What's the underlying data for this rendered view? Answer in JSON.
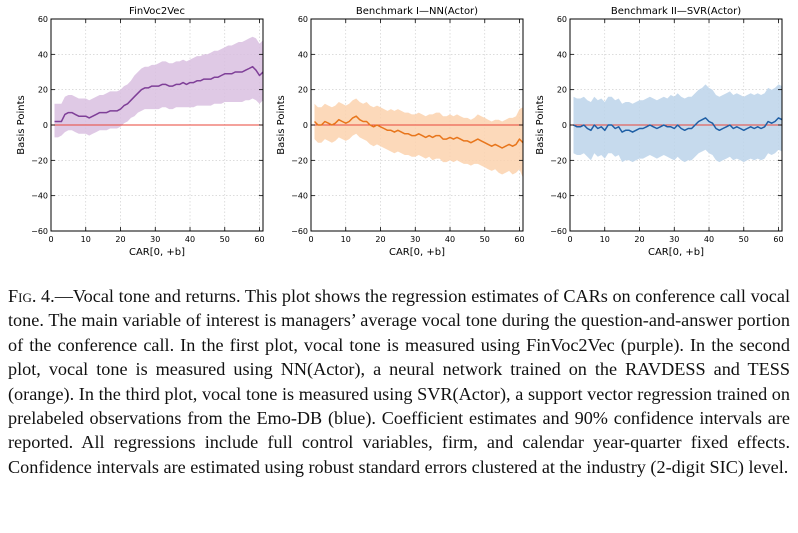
{
  "chart_data": [
    {
      "type": "line",
      "title": "FinVoc2Vec",
      "xlabel": "CAR[0, +b]",
      "ylabel": "Basis Points",
      "xlim": [
        0,
        61
      ],
      "ylim": [
        -60,
        60
      ],
      "xticks": [
        "0",
        "10",
        "20",
        "30",
        "40",
        "50",
        "60"
      ],
      "yticks": [
        "60",
        "40",
        "20",
        "0",
        "−20",
        "−40",
        "−60"
      ],
      "grid": true,
      "colors": {
        "line": "#7f3f98",
        "band": "#d9bfe0",
        "zero": "#e8463a"
      },
      "x": [
        1,
        2,
        3,
        4,
        5,
        6,
        7,
        8,
        9,
        10,
        11,
        12,
        13,
        14,
        15,
        16,
        17,
        18,
        19,
        20,
        21,
        22,
        23,
        24,
        25,
        26,
        27,
        28,
        29,
        30,
        31,
        32,
        33,
        34,
        35,
        36,
        37,
        38,
        39,
        40,
        41,
        42,
        43,
        44,
        45,
        46,
        47,
        48,
        49,
        50,
        51,
        52,
        53,
        54,
        55,
        56,
        57,
        58,
        59,
        60,
        61
      ],
      "series": [
        {
          "values": [
            2,
            2,
            2,
            6,
            7,
            7,
            6,
            5,
            5,
            5,
            4,
            5,
            6,
            7,
            7,
            7,
            8,
            8,
            8,
            9,
            11,
            12,
            14,
            16,
            18,
            20,
            21,
            21,
            22,
            22,
            22,
            23,
            23,
            22,
            22,
            23,
            23,
            24,
            23,
            24,
            24,
            25,
            25,
            26,
            26,
            26,
            27,
            27,
            28,
            29,
            29,
            29,
            30,
            30,
            30,
            31,
            32,
            33,
            31,
            28,
            30
          ],
          "lower": [
            -7,
            -7,
            -6,
            -4,
            -3,
            -3,
            -4,
            -5,
            -5,
            -5,
            -6,
            -5,
            -4,
            -3,
            -3,
            -3,
            -2,
            -2,
            -2,
            -1,
            1,
            2,
            4,
            5,
            7,
            8,
            9,
            9,
            9,
            9,
            9,
            10,
            10,
            9,
            9,
            10,
            10,
            10,
            10,
            10,
            10,
            11,
            11,
            11,
            11,
            11,
            12,
            12,
            12,
            13,
            13,
            13,
            13,
            13,
            13,
            14,
            14,
            15,
            14,
            12,
            14
          ],
          "upper": [
            12,
            12,
            12,
            16,
            17,
            17,
            16,
            15,
            15,
            15,
            14,
            15,
            16,
            17,
            17,
            18,
            19,
            19,
            19,
            20,
            22,
            23,
            25,
            28,
            30,
            32,
            33,
            33,
            34,
            34,
            35,
            36,
            36,
            35,
            35,
            36,
            36,
            37,
            36,
            37,
            38,
            39,
            39,
            40,
            40,
            41,
            42,
            42,
            43,
            44,
            45,
            45,
            46,
            47,
            47,
            48,
            49,
            50,
            49,
            46,
            48
          ]
        }
      ]
    },
    {
      "type": "line",
      "title": "Benchmark I—NN(Actor)",
      "xlabel": "CAR[0, +b]",
      "ylabel": "Basis Points",
      "xlim": [
        0,
        61
      ],
      "ylim": [
        -60,
        60
      ],
      "xticks": [
        "0",
        "10",
        "20",
        "30",
        "40",
        "50",
        "60"
      ],
      "yticks": [
        "60",
        "40",
        "20",
        "0",
        "−20",
        "−40",
        "−60"
      ],
      "grid": true,
      "colors": {
        "line": "#e8761c",
        "band": "#fcd2ae",
        "zero": "#e8463a"
      },
      "x": [
        1,
        2,
        3,
        4,
        5,
        6,
        7,
        8,
        9,
        10,
        11,
        12,
        13,
        14,
        15,
        16,
        17,
        18,
        19,
        20,
        21,
        22,
        23,
        24,
        25,
        26,
        27,
        28,
        29,
        30,
        31,
        32,
        33,
        34,
        35,
        36,
        37,
        38,
        39,
        40,
        41,
        42,
        43,
        44,
        45,
        46,
        47,
        48,
        49,
        50,
        51,
        52,
        53,
        54,
        55,
        56,
        57,
        58,
        59,
        60,
        61
      ],
      "series": [
        {
          "values": [
            2,
            0,
            0,
            2,
            1,
            0,
            1,
            3,
            2,
            1,
            2,
            4,
            5,
            3,
            2,
            2,
            0,
            -1,
            0,
            -1,
            -2,
            -3,
            -3,
            -4,
            -3,
            -4,
            -5,
            -5,
            -6,
            -6,
            -5,
            -6,
            -7,
            -6,
            -7,
            -6,
            -6,
            -8,
            -8,
            -7,
            -8,
            -7,
            -8,
            -9,
            -9,
            -10,
            -9,
            -8,
            -9,
            -10,
            -11,
            -12,
            -11,
            -12,
            -13,
            -12,
            -11,
            -12,
            -11,
            -8,
            -10
          ],
          "lower": [
            -8,
            -10,
            -10,
            -8,
            -9,
            -10,
            -9,
            -7,
            -8,
            -9,
            -8,
            -6,
            -5,
            -7,
            -8,
            -9,
            -11,
            -12,
            -11,
            -12,
            -13,
            -14,
            -15,
            -16,
            -15,
            -16,
            -17,
            -17,
            -18,
            -18,
            -17,
            -18,
            -19,
            -18,
            -20,
            -19,
            -19,
            -21,
            -21,
            -20,
            -21,
            -20,
            -21,
            -22,
            -22,
            -23,
            -22,
            -22,
            -23,
            -24,
            -25,
            -26,
            -25,
            -27,
            -28,
            -27,
            -26,
            -28,
            -27,
            -25,
            -30
          ],
          "upper": [
            12,
            10,
            10,
            12,
            11,
            10,
            11,
            13,
            12,
            11,
            12,
            14,
            15,
            13,
            12,
            13,
            11,
            10,
            11,
            10,
            9,
            8,
            9,
            8,
            9,
            8,
            7,
            7,
            6,
            6,
            7,
            6,
            5,
            6,
            6,
            7,
            7,
            5,
            5,
            6,
            5,
            6,
            5,
            4,
            4,
            3,
            4,
            6,
            5,
            4,
            3,
            2,
            3,
            3,
            2,
            3,
            4,
            4,
            5,
            9,
            10
          ]
        }
      ]
    },
    {
      "type": "line",
      "title": "Benchmark II—SVR(Actor)",
      "xlabel": "CAR[0, +b]",
      "ylabel": "Basis Points",
      "xlim": [
        0,
        61
      ],
      "ylim": [
        -60,
        60
      ],
      "xticks": [
        "0",
        "10",
        "20",
        "30",
        "40",
        "50",
        "60"
      ],
      "yticks": [
        "60",
        "40",
        "20",
        "0",
        "−20",
        "−40",
        "−60"
      ],
      "grid": true,
      "colors": {
        "line": "#1f5fa5",
        "band": "#bcd4ea",
        "zero": "#e8463a"
      },
      "x": [
        1,
        2,
        3,
        4,
        5,
        6,
        7,
        8,
        9,
        10,
        11,
        12,
        13,
        14,
        15,
        16,
        17,
        18,
        19,
        20,
        21,
        22,
        23,
        24,
        25,
        26,
        27,
        28,
        29,
        30,
        31,
        32,
        33,
        34,
        35,
        36,
        37,
        38,
        39,
        40,
        41,
        42,
        43,
        44,
        45,
        46,
        47,
        48,
        49,
        50,
        51,
        52,
        53,
        54,
        55,
        56,
        57,
        58,
        59,
        60,
        61
      ],
      "series": [
        {
          "values": [
            0,
            -1,
            -1,
            0,
            -2,
            -3,
            0,
            -2,
            -1,
            -3,
            0,
            0,
            -2,
            -1,
            -4,
            -3,
            -3,
            -4,
            -3,
            -2,
            -2,
            -1,
            0,
            -1,
            -2,
            -1,
            0,
            -1,
            -1,
            -2,
            0,
            -2,
            -3,
            -2,
            -2,
            0,
            2,
            3,
            4,
            2,
            1,
            -2,
            -3,
            -2,
            -1,
            0,
            -2,
            -1,
            -2,
            -3,
            -2,
            -1,
            -2,
            -1,
            -2,
            -1,
            2,
            1,
            2,
            4,
            3
          ],
          "lower": [
            -16,
            -17,
            -17,
            -16,
            -18,
            -20,
            -16,
            -18,
            -17,
            -19,
            -16,
            -16,
            -18,
            -17,
            -21,
            -20,
            -20,
            -21,
            -20,
            -19,
            -19,
            -18,
            -17,
            -18,
            -19,
            -18,
            -17,
            -18,
            -19,
            -20,
            -18,
            -20,
            -21,
            -20,
            -20,
            -18,
            -16,
            -15,
            -14,
            -16,
            -17,
            -20,
            -21,
            -20,
            -19,
            -18,
            -20,
            -19,
            -20,
            -21,
            -20,
            -19,
            -20,
            -19,
            -20,
            -19,
            -16,
            -17,
            -16,
            -14,
            -15
          ],
          "upper": [
            16,
            15,
            15,
            16,
            14,
            13,
            16,
            14,
            15,
            13,
            16,
            16,
            14,
            15,
            12,
            13,
            13,
            12,
            13,
            14,
            14,
            15,
            16,
            15,
            14,
            15,
            16,
            15,
            17,
            16,
            18,
            16,
            15,
            16,
            16,
            18,
            20,
            21,
            23,
            21,
            20,
            17,
            16,
            17,
            18,
            19,
            17,
            18,
            17,
            16,
            17,
            18,
            17,
            18,
            17,
            18,
            21,
            20,
            21,
            23,
            22
          ]
        }
      ]
    }
  ],
  "caption": {
    "fig_label": "Fig. 4.",
    "text": "—Vocal tone and returns. This plot shows the regression estimates of CARs on conference call vocal tone. The main variable of interest is managers’ average vocal tone during the question-and-answer portion of the conference call. In the first plot, vocal tone is measured using FinVoc2Vec (purple). In the second plot, vocal tone is measured using NN(Actor), a neural network trained on the RAVDESS and TESS (orange). In the third plot, vocal tone is measured using SVR(Actor), a support vector regression trained on prelabeled observations from the Emo-DB (blue). Coefficient estimates and 90% confidence intervals are reported. All regressions include full control variables, firm, and calendar year-quarter fixed effects. Confidence intervals are estimated using robust standard errors clustered at the industry (2-digit SIC) level."
  }
}
